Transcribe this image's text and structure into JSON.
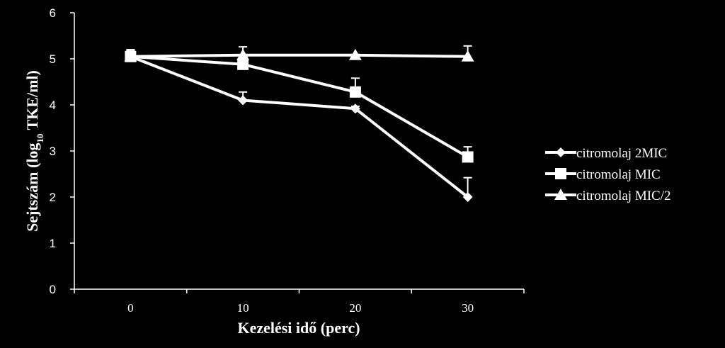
{
  "chart_data": {
    "type": "line",
    "x": [
      0,
      10,
      20,
      30
    ],
    "x_tick_labels": [
      "0",
      "10",
      "20",
      "30"
    ],
    "y_tick_labels": [
      "0",
      "1",
      "2",
      "3",
      "4",
      "5",
      "6"
    ],
    "ylim": [
      0,
      6
    ],
    "xlabel": "Kezelési idő (perc)",
    "ylabel": "Sejtszám (log10 TKE/ml)",
    "ylabel_parts": {
      "pre": "Sejtszám (log",
      "sub": "10",
      "post": " TKE/ml)"
    },
    "grid": false,
    "legend_position": "right",
    "colors": {
      "background": "#000000",
      "foreground": "#ffffff"
    },
    "series": [
      {
        "name": "citromolaj 2MIC",
        "marker": "diamond",
        "values": [
          5.05,
          4.1,
          3.92,
          2.0
        ],
        "error": [
          0.12,
          0.18,
          0.05,
          0.42
        ]
      },
      {
        "name": "citromolaj MIC",
        "marker": "square",
        "values": [
          5.05,
          4.88,
          4.28,
          2.87
        ],
        "error": [
          0.1,
          0.1,
          0.3,
          0.22
        ]
      },
      {
        "name": "citromolaj MIC/2",
        "marker": "triangle",
        "values": [
          5.05,
          5.08,
          5.08,
          5.05
        ],
        "error": [
          0.15,
          0.18,
          0.0,
          0.23
        ]
      }
    ]
  }
}
